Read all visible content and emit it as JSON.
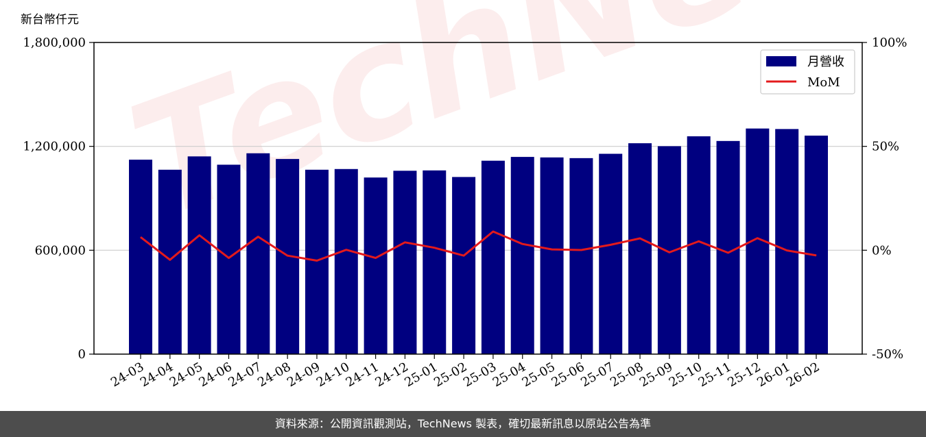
{
  "watermark": "TechNews",
  "footer": "資料來源：公開資訊觀測站，TechNews 製表，確切最新訊息以原站公告為準",
  "chart_data": {
    "type": "bar",
    "unit_label": "新台幣仟元",
    "categories": [
      "24-03",
      "24-04",
      "24-05",
      "24-06",
      "24-07",
      "24-08",
      "24-09",
      "24-10",
      "24-11",
      "24-12",
      "25-01",
      "25-02",
      "25-03",
      "25-04",
      "25-05",
      "25-06",
      "25-07",
      "25-08",
      "25-09",
      "25-10",
      "25-11",
      "25-12",
      "26-01",
      "26-02"
    ],
    "series": [
      {
        "name": "月營收",
        "axis": "left",
        "kind": "bar",
        "color": "#000080",
        "values": [
          1123000,
          1065000,
          1142000,
          1094000,
          1160000,
          1127000,
          1065000,
          1069000,
          1020000,
          1059000,
          1061000,
          1023000,
          1117000,
          1139000,
          1136000,
          1132000,
          1157000,
          1218000,
          1201000,
          1258000,
          1231000,
          1303000,
          1300000,
          1262000
        ]
      },
      {
        "name": "MoM",
        "axis": "right",
        "kind": "line",
        "color": "#e31a1c",
        "values": [
          6.3,
          -4.6,
          7.2,
          -3.7,
          6.5,
          -2.6,
          -5.0,
          0.2,
          -3.7,
          3.8,
          1.2,
          -2.6,
          9.0,
          3.0,
          0.4,
          0.1,
          2.6,
          5.7,
          -1.0,
          4.3,
          -1.2,
          5.8,
          -0.1,
          -2.5
        ]
      }
    ],
    "y_left": {
      "ylim": [
        0,
        1800000
      ],
      "ticks": [
        0,
        600000,
        1200000,
        1800000
      ],
      "tick_labels": [
        "0",
        "600,000",
        "1,200,000",
        "1,800,000"
      ]
    },
    "y_right": {
      "ylim": [
        -50,
        100
      ],
      "ticks": [
        -50,
        0,
        50,
        100
      ],
      "tick_labels": [
        "-50%",
        "0%",
        "50%",
        "100%"
      ]
    },
    "grid": "horizontal",
    "legend_position": "top-right"
  }
}
